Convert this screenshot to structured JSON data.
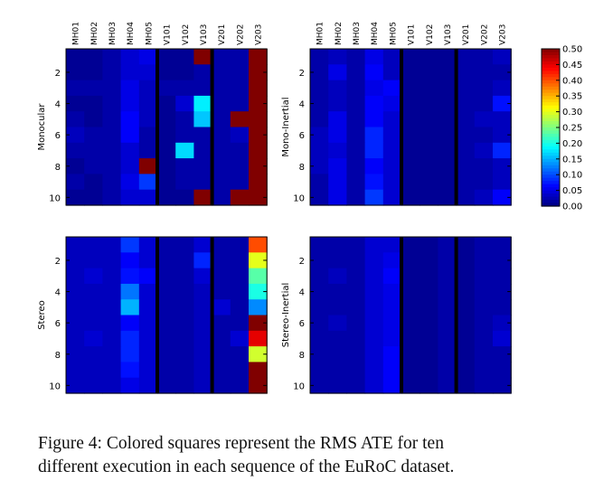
{
  "chart_data": {
    "type": "heatmap",
    "title": "",
    "sequences": [
      "MH01",
      "MH02",
      "MH03",
      "MH04",
      "MH05",
      "V101",
      "V102",
      "V103",
      "V201",
      "V202",
      "V203"
    ],
    "runs": [
      1,
      2,
      3,
      4,
      5,
      6,
      7,
      8,
      9,
      10
    ],
    "y_tick_labels": [
      "2",
      "4",
      "6",
      "8",
      "10"
    ],
    "colorbar": {
      "min": 0.0,
      "max": 0.5,
      "tick_labels": [
        "0.00",
        "0.05",
        "0.10",
        "0.15",
        "0.20",
        "0.25",
        "0.30",
        "0.35",
        "0.40",
        "0.45",
        "0.50"
      ]
    },
    "panels": [
      {
        "name": "Monocular",
        "values": [
          [
            0.01,
            0.01,
            0.02,
            0.04,
            0.05,
            0.01,
            0.01,
            0.5,
            0.02,
            0.02,
            0.5
          ],
          [
            0.01,
            0.01,
            0.02,
            0.04,
            0.04,
            0.01,
            0.01,
            0.02,
            0.02,
            0.02,
            0.5
          ],
          [
            0.02,
            0.02,
            0.02,
            0.05,
            0.03,
            0.02,
            0.02,
            0.02,
            0.02,
            0.02,
            0.5
          ],
          [
            0.01,
            0.01,
            0.02,
            0.05,
            0.03,
            0.01,
            0.04,
            0.18,
            0.02,
            0.02,
            0.5
          ],
          [
            0.02,
            0.01,
            0.02,
            0.06,
            0.03,
            0.01,
            0.02,
            0.16,
            0.02,
            0.5,
            0.5
          ],
          [
            0.03,
            0.02,
            0.02,
            0.06,
            0.02,
            0.01,
            0.02,
            0.02,
            0.02,
            0.03,
            0.5
          ],
          [
            0.02,
            0.02,
            0.02,
            0.04,
            0.02,
            0.01,
            0.17,
            0.02,
            0.02,
            0.02,
            0.5
          ],
          [
            0.01,
            0.02,
            0.02,
            0.04,
            0.5,
            0.01,
            0.02,
            0.02,
            0.02,
            0.02,
            0.5
          ],
          [
            0.02,
            0.01,
            0.02,
            0.05,
            0.09,
            0.01,
            0.02,
            0.02,
            0.02,
            0.02,
            0.5
          ],
          [
            0.01,
            0.01,
            0.02,
            0.04,
            0.04,
            0.01,
            0.01,
            0.5,
            0.02,
            0.5,
            0.5
          ]
        ]
      },
      {
        "name": "Mono-Inertial",
        "values": [
          [
            0.02,
            0.03,
            0.02,
            0.05,
            0.03,
            0.01,
            0.01,
            0.01,
            0.02,
            0.02,
            0.03
          ],
          [
            0.02,
            0.05,
            0.02,
            0.06,
            0.03,
            0.01,
            0.01,
            0.01,
            0.02,
            0.02,
            0.02
          ],
          [
            0.02,
            0.03,
            0.02,
            0.05,
            0.06,
            0.01,
            0.01,
            0.01,
            0.02,
            0.02,
            0.03
          ],
          [
            0.02,
            0.03,
            0.02,
            0.06,
            0.05,
            0.01,
            0.01,
            0.01,
            0.02,
            0.02,
            0.07
          ],
          [
            0.02,
            0.05,
            0.02,
            0.06,
            0.04,
            0.01,
            0.01,
            0.01,
            0.02,
            0.03,
            0.03
          ],
          [
            0.03,
            0.05,
            0.02,
            0.08,
            0.04,
            0.01,
            0.01,
            0.01,
            0.02,
            0.02,
            0.03
          ],
          [
            0.03,
            0.04,
            0.02,
            0.08,
            0.04,
            0.01,
            0.01,
            0.01,
            0.02,
            0.03,
            0.08
          ],
          [
            0.03,
            0.05,
            0.02,
            0.06,
            0.04,
            0.01,
            0.01,
            0.01,
            0.02,
            0.02,
            0.03
          ],
          [
            0.02,
            0.05,
            0.02,
            0.07,
            0.04,
            0.01,
            0.01,
            0.01,
            0.02,
            0.02,
            0.03
          ],
          [
            0.02,
            0.05,
            0.02,
            0.09,
            0.04,
            0.01,
            0.01,
            0.01,
            0.02,
            0.03,
            0.06
          ]
        ]
      },
      {
        "name": "Stereo",
        "values": [
          [
            0.03,
            0.03,
            0.03,
            0.09,
            0.04,
            0.02,
            0.02,
            0.04,
            0.02,
            0.02,
            0.4
          ],
          [
            0.03,
            0.03,
            0.03,
            0.06,
            0.04,
            0.02,
            0.02,
            0.08,
            0.02,
            0.02,
            0.3
          ],
          [
            0.03,
            0.04,
            0.03,
            0.07,
            0.06,
            0.02,
            0.02,
            0.04,
            0.02,
            0.02,
            0.23
          ],
          [
            0.03,
            0.03,
            0.03,
            0.12,
            0.04,
            0.02,
            0.02,
            0.03,
            0.02,
            0.02,
            0.2
          ],
          [
            0.03,
            0.03,
            0.03,
            0.15,
            0.04,
            0.02,
            0.02,
            0.03,
            0.04,
            0.02,
            0.13
          ],
          [
            0.03,
            0.03,
            0.03,
            0.06,
            0.04,
            0.02,
            0.02,
            0.03,
            0.02,
            0.02,
            0.5
          ],
          [
            0.03,
            0.04,
            0.03,
            0.08,
            0.04,
            0.02,
            0.02,
            0.03,
            0.02,
            0.04,
            0.45
          ],
          [
            0.03,
            0.03,
            0.03,
            0.08,
            0.04,
            0.02,
            0.02,
            0.03,
            0.02,
            0.02,
            0.29
          ],
          [
            0.03,
            0.03,
            0.03,
            0.07,
            0.04,
            0.02,
            0.02,
            0.03,
            0.02,
            0.02,
            0.5
          ],
          [
            0.03,
            0.03,
            0.03,
            0.05,
            0.04,
            0.02,
            0.02,
            0.03,
            0.02,
            0.02,
            0.5
          ]
        ]
      },
      {
        "name": "Stereo-Inertial",
        "values": [
          [
            0.02,
            0.02,
            0.02,
            0.04,
            0.04,
            0.01,
            0.01,
            0.02,
            0.01,
            0.02,
            0.02
          ],
          [
            0.02,
            0.02,
            0.02,
            0.04,
            0.05,
            0.01,
            0.01,
            0.02,
            0.01,
            0.02,
            0.02
          ],
          [
            0.02,
            0.03,
            0.02,
            0.04,
            0.06,
            0.01,
            0.01,
            0.02,
            0.01,
            0.02,
            0.02
          ],
          [
            0.02,
            0.02,
            0.02,
            0.04,
            0.05,
            0.01,
            0.01,
            0.02,
            0.01,
            0.02,
            0.02
          ],
          [
            0.02,
            0.02,
            0.02,
            0.04,
            0.05,
            0.01,
            0.01,
            0.02,
            0.01,
            0.02,
            0.02
          ],
          [
            0.02,
            0.03,
            0.02,
            0.04,
            0.05,
            0.01,
            0.01,
            0.02,
            0.01,
            0.02,
            0.03
          ],
          [
            0.02,
            0.02,
            0.02,
            0.04,
            0.05,
            0.01,
            0.01,
            0.02,
            0.01,
            0.02,
            0.04
          ],
          [
            0.02,
            0.02,
            0.02,
            0.04,
            0.06,
            0.01,
            0.01,
            0.02,
            0.01,
            0.02,
            0.02
          ],
          [
            0.02,
            0.02,
            0.02,
            0.04,
            0.06,
            0.01,
            0.01,
            0.02,
            0.01,
            0.02,
            0.02
          ],
          [
            0.02,
            0.02,
            0.02,
            0.04,
            0.06,
            0.01,
            0.01,
            0.02,
            0.01,
            0.02,
            0.02
          ]
        ]
      }
    ]
  },
  "caption": {
    "line1": "Figure 4: Colored squares represent the RMS ATE for ten",
    "line2": "different execution in each sequence of the EuRoC dataset."
  }
}
